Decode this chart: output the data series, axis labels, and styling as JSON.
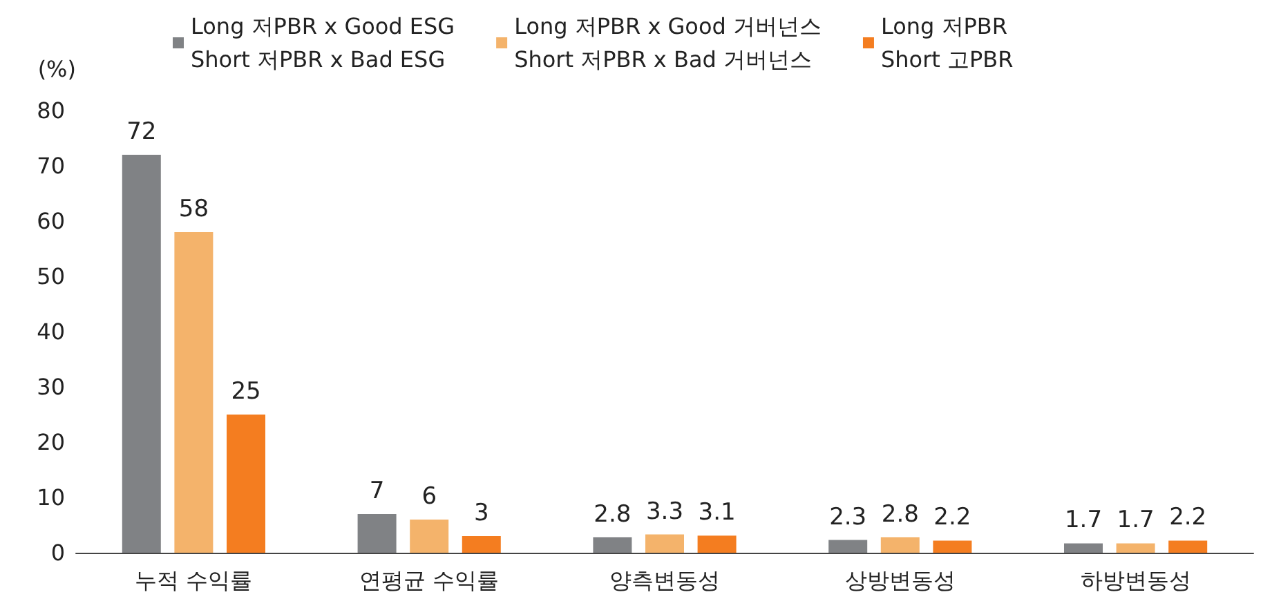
{
  "chart_data": {
    "type": "bar",
    "ylabel": "(%)",
    "categories": [
      "누적 수익률",
      "연평균 수익률",
      "양측변동성",
      "상방변동성",
      "하방변동성"
    ],
    "series": [
      {
        "name": "Long 저PBR x Good ESG\nShort 저PBR x Bad ESG",
        "color": "#808285",
        "values": [
          72,
          7,
          2.8,
          2.3,
          1.7
        ]
      },
      {
        "name": "Long 저PBR x Good 거버넌스\nShort 저PBR x Bad 거버넌스",
        "color": "#f4b36b",
        "values": [
          58,
          6,
          3.3,
          2.8,
          1.7
        ]
      },
      {
        "name": "Long 저PBR\nShort 고PBR",
        "color": "#f47d20",
        "values": [
          25,
          3,
          3.1,
          2.2,
          2.2
        ]
      }
    ],
    "ylim": [
      0,
      80
    ],
    "yticks": [
      0,
      10,
      20,
      30,
      40,
      50,
      60,
      70,
      80
    ],
    "data_labels": true,
    "legend": "top"
  }
}
